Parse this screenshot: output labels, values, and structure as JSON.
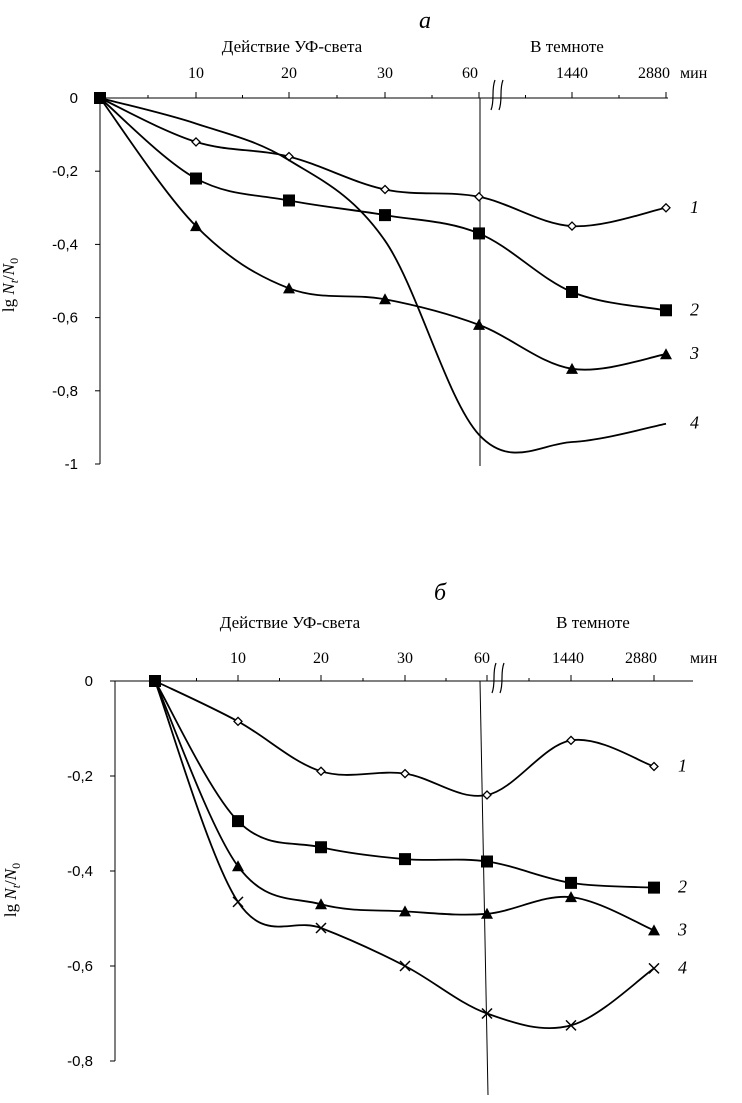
{
  "chart_data": [
    {
      "type": "line",
      "panel_label": "а",
      "top_header_left": "Действие УФ-света",
      "top_header_right": "В темноте",
      "x_unit": "мин",
      "categories": [
        "0",
        "10",
        "20",
        "30",
        "60",
        "1440",
        "2880"
      ],
      "x_tick_labels": [
        "10",
        "20",
        "30",
        "60",
        "1440",
        "2880"
      ],
      "ylabel_parts": [
        "lg ",
        "N",
        "t",
        "/",
        "N",
        "0"
      ],
      "ylim": [
        -1,
        0
      ],
      "y_ticks": [
        0,
        -0.2,
        -0.4,
        -0.6,
        -0.8,
        -1
      ],
      "y_tick_labels": [
        "0",
        "-0,2",
        "-0,4",
        "-0,6",
        "-0,8",
        "-1"
      ],
      "series": [
        {
          "name": "1",
          "marker": "diamond-open",
          "values": [
            0,
            -0.12,
            -0.16,
            -0.25,
            -0.27,
            -0.35,
            -0.3
          ]
        },
        {
          "name": "2",
          "marker": "square",
          "values": [
            0,
            -0.22,
            -0.28,
            -0.32,
            -0.37,
            -0.53,
            -0.58
          ]
        },
        {
          "name": "3",
          "marker": "triangle",
          "values": [
            0,
            -0.35,
            -0.52,
            -0.55,
            -0.62,
            -0.74,
            -0.7
          ]
        },
        {
          "name": "4",
          "marker": "none",
          "values": [
            0,
            -0.07,
            -0.17,
            -0.39,
            -0.92,
            -0.94,
            -0.89
          ]
        }
      ]
    },
    {
      "type": "line",
      "panel_label": "б",
      "top_header_left": "Действие УФ-света",
      "top_header_right": "В темноте",
      "x_unit": "мин",
      "categories": [
        "0",
        "10",
        "20",
        "30",
        "60",
        "1440",
        "2880"
      ],
      "x_tick_labels": [
        "10",
        "20",
        "30",
        "60",
        "1440",
        "2880"
      ],
      "ylabel_parts": [
        "lg ",
        "N",
        "t",
        "/",
        "N",
        "0"
      ],
      "ylim": [
        -0.8,
        0
      ],
      "y_ticks": [
        0,
        -0.2,
        -0.4,
        -0.6,
        -0.8
      ],
      "y_tick_labels": [
        "0",
        "-0,2",
        "-0,4",
        "-0,6",
        "-0,8"
      ],
      "series": [
        {
          "name": "1",
          "marker": "diamond-open",
          "values": [
            0,
            -0.085,
            -0.19,
            -0.195,
            -0.24,
            -0.125,
            -0.18
          ]
        },
        {
          "name": "2",
          "marker": "square",
          "values": [
            0,
            -0.295,
            -0.35,
            -0.375,
            -0.38,
            -0.425,
            -0.435
          ]
        },
        {
          "name": "3",
          "marker": "triangle",
          "values": [
            0,
            -0.39,
            -0.47,
            -0.485,
            -0.49,
            -0.455,
            -0.525
          ]
        },
        {
          "name": "4",
          "marker": "cross",
          "values": [
            0,
            -0.465,
            -0.52,
            -0.6,
            -0.7,
            -0.725,
            -0.605
          ]
        }
      ]
    }
  ]
}
